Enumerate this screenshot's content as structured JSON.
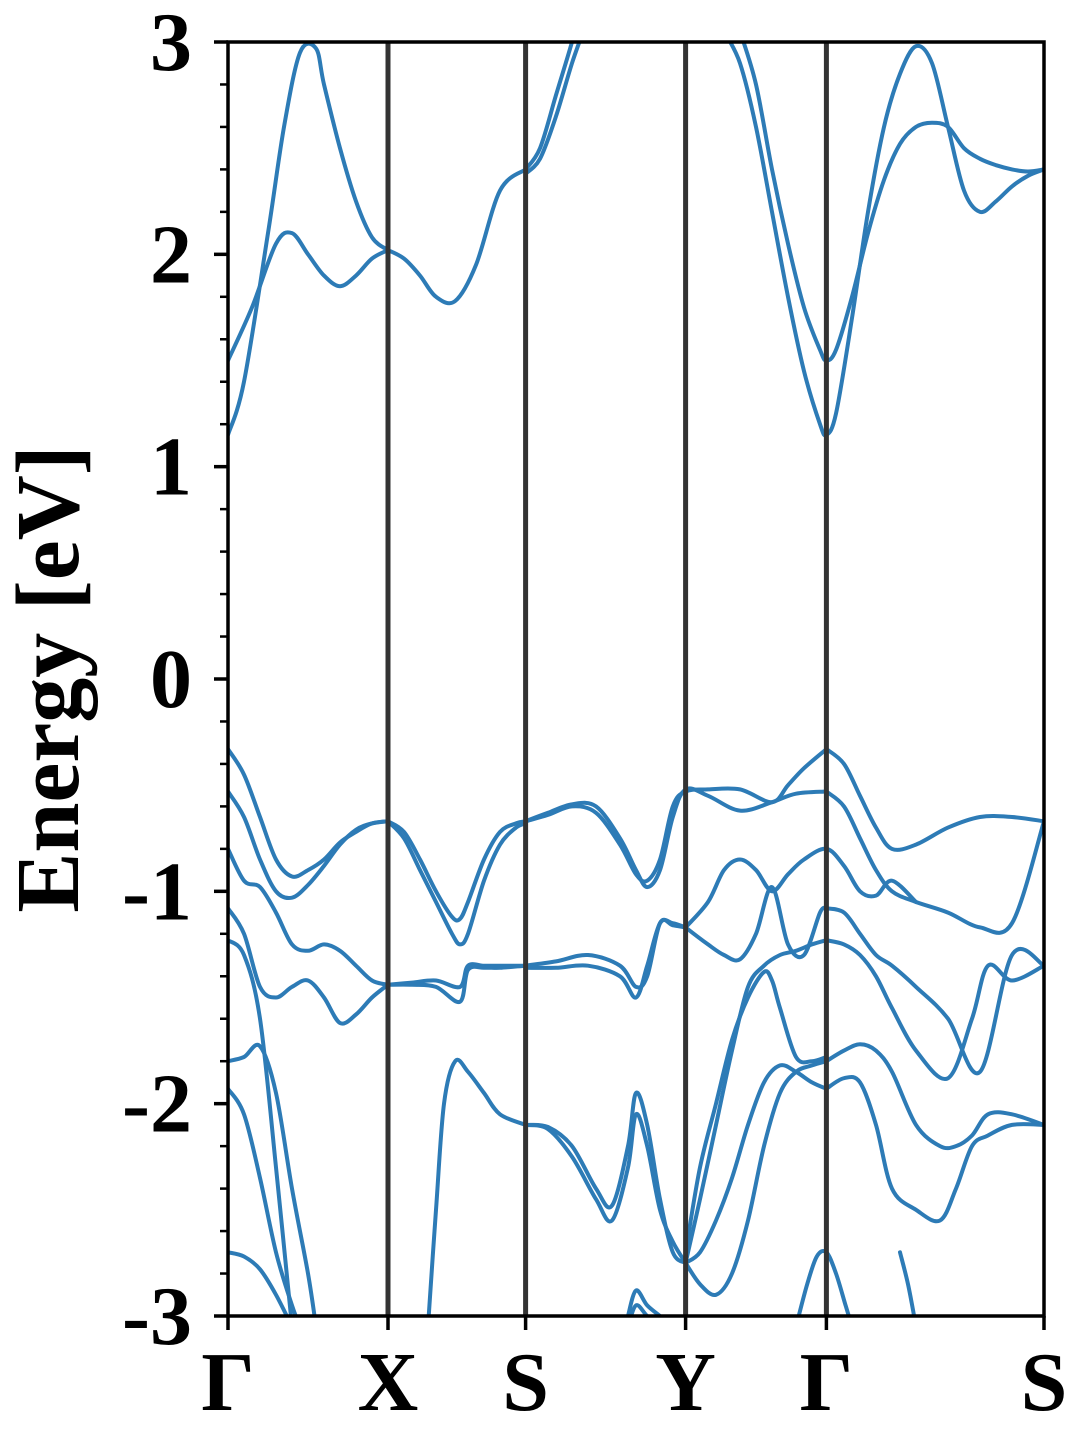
{
  "chart_data": {
    "type": "line",
    "title": "",
    "xlabel": "",
    "ylabel": "Energy [eV]",
    "ylim": [
      -3,
      3
    ],
    "yticks": [
      "-3",
      "-2",
      "-1",
      "0",
      "1",
      "2",
      "3"
    ],
    "ytick_values": [
      -3,
      -2,
      -1,
      0,
      1,
      2,
      3
    ],
    "y_minor_step": 0.2,
    "xlim": [
      0,
      5.1
    ],
    "high_symmetry_points": [
      {
        "label": "Γ",
        "x": 0
      },
      {
        "label": "X",
        "x": 1.0
      },
      {
        "label": "S",
        "x": 1.86
      },
      {
        "label": "Y",
        "x": 2.86
      },
      {
        "label": "Γ",
        "x": 3.74
      },
      {
        "label": "S",
        "x": 5.1
      }
    ],
    "grid": false,
    "legend": "none",
    "band_color": "#2d7bb6",
    "separator_color": "#333333",
    "series": [
      {
        "x": [
          0,
          0.1,
          0.25,
          0.35,
          0.45,
          0.55,
          0.6,
          0.7,
          0.8,
          0.9,
          1.0
        ],
        "values": [
          1.15,
          1.4,
          2.1,
          2.6,
          2.95,
          2.97,
          2.8,
          2.5,
          2.25,
          2.08,
          2.02
        ]
      },
      {
        "x": [
          0,
          0.15,
          0.3,
          0.4,
          0.5,
          0.6,
          0.7,
          0.8,
          0.9,
          1.0
        ],
        "values": [
          1.5,
          1.75,
          2.05,
          2.1,
          2.0,
          1.9,
          1.85,
          1.9,
          1.98,
          2.02
        ]
      },
      {
        "x": [
          1.0,
          1.1,
          1.2,
          1.3,
          1.42,
          1.55,
          1.7,
          1.86
        ],
        "values": [
          2.02,
          1.98,
          1.9,
          1.8,
          1.78,
          1.95,
          2.3,
          2.4
        ]
      },
      {
        "x": [
          1.86,
          1.95,
          2.05,
          2.15,
          2.22,
          2.3
        ],
        "values": [
          2.4,
          2.5,
          2.75,
          3.0,
          3.2,
          3.4
        ]
      },
      {
        "x": [
          1.86,
          1.95,
          2.05,
          2.15,
          2.24,
          2.3
        ],
        "values": [
          2.38,
          2.45,
          2.65,
          2.9,
          3.1,
          3.3
        ]
      },
      {
        "x": [
          3.1,
          3.2,
          3.3,
          3.4,
          3.5,
          3.6,
          3.7,
          3.74,
          3.8,
          3.9,
          4.0,
          4.1,
          4.2,
          4.3,
          4.4,
          4.5,
          4.6,
          4.7,
          4.8,
          4.9,
          5.0,
          5.1
        ],
        "values": [
          3.05,
          2.9,
          2.6,
          2.2,
          1.8,
          1.45,
          1.2,
          1.15,
          1.25,
          1.7,
          2.2,
          2.6,
          2.85,
          2.98,
          2.9,
          2.6,
          2.3,
          2.2,
          2.25,
          2.32,
          2.37,
          2.4
        ]
      },
      {
        "x": [
          3.2,
          3.3,
          3.4,
          3.5,
          3.6,
          3.7,
          3.74,
          3.8,
          3.9,
          4.0,
          4.1,
          4.2,
          4.3,
          4.4,
          4.5,
          4.6,
          4.7,
          4.8,
          4.9,
          5.0,
          5.1
        ],
        "values": [
          3.05,
          2.8,
          2.4,
          2.05,
          1.75,
          1.55,
          1.5,
          1.55,
          1.8,
          2.1,
          2.35,
          2.52,
          2.6,
          2.62,
          2.6,
          2.5,
          2.45,
          2.42,
          2.4,
          2.39,
          2.4
        ]
      },
      {
        "x": [
          0,
          0.1,
          0.2,
          0.3,
          0.4,
          0.5,
          0.6,
          0.7,
          0.8,
          0.9,
          1.0
        ],
        "values": [
          -0.33,
          -0.45,
          -0.65,
          -0.85,
          -0.93,
          -0.9,
          -0.85,
          -0.77,
          -0.72,
          -0.68,
          -0.67
        ]
      },
      {
        "x": [
          0,
          0.1,
          0.2,
          0.3,
          0.4,
          0.5,
          0.6,
          0.7,
          0.8,
          0.9,
          1.0
        ],
        "values": [
          -0.53,
          -0.65,
          -0.85,
          -1.0,
          -1.03,
          -0.97,
          -0.88,
          -0.78,
          -0.71,
          -0.68,
          -0.67
        ]
      },
      {
        "x": [
          1.0,
          1.1,
          1.2,
          1.3,
          1.4,
          1.45,
          1.5,
          1.6,
          1.7,
          1.8,
          1.86
        ],
        "values": [
          -0.67,
          -0.72,
          -0.85,
          -1.0,
          -1.12,
          -1.13,
          -1.05,
          -0.85,
          -0.72,
          -0.68,
          -0.67
        ]
      },
      {
        "x": [
          1.0,
          1.1,
          1.2,
          1.3,
          1.4,
          1.45,
          1.5,
          1.6,
          1.7,
          1.8,
          1.86
        ],
        "values": [
          -0.67,
          -0.75,
          -0.9,
          -1.05,
          -1.2,
          -1.25,
          -1.2,
          -0.95,
          -0.78,
          -0.7,
          -0.68
        ]
      },
      {
        "x": [
          1.86,
          2.0,
          2.15,
          2.3,
          2.45,
          2.55,
          2.62,
          2.7,
          2.78,
          2.86,
          3.0,
          3.2,
          3.4,
          3.5,
          3.6,
          3.74
        ],
        "values": [
          -0.67,
          -0.64,
          -0.6,
          -0.63,
          -0.78,
          -0.92,
          -0.95,
          -0.85,
          -0.6,
          -0.53,
          -0.52,
          -0.52,
          -0.58,
          -0.5,
          -0.42,
          -0.33
        ]
      },
      {
        "x": [
          1.86,
          2.0,
          2.15,
          2.3,
          2.45,
          2.55,
          2.62,
          2.7,
          2.78,
          2.86,
          3.0,
          3.2,
          3.4,
          3.55,
          3.74
        ],
        "values": [
          -0.67,
          -0.63,
          -0.59,
          -0.6,
          -0.75,
          -0.9,
          -0.98,
          -0.9,
          -0.65,
          -0.52,
          -0.55,
          -0.62,
          -0.58,
          -0.54,
          -0.53
        ]
      },
      {
        "x": [
          3.74,
          3.85,
          3.95,
          4.05,
          4.15,
          4.3,
          4.5,
          4.7,
          4.9,
          5.1
        ],
        "values": [
          -0.33,
          -0.4,
          -0.55,
          -0.7,
          -0.8,
          -0.78,
          -0.7,
          -0.65,
          -0.65,
          -0.67
        ]
      },
      {
        "x": [
          3.74,
          3.85,
          3.95,
          4.05,
          4.15,
          4.3,
          4.5,
          4.7,
          4.9,
          5.1
        ],
        "values": [
          -0.53,
          -0.6,
          -0.75,
          -0.9,
          -1.0,
          -1.05,
          -1.1,
          -1.17,
          -1.15,
          -0.67
        ]
      },
      {
        "x": [
          0,
          0.1,
          0.2,
          0.3,
          0.4,
          0.5,
          0.6,
          0.7,
          0.8,
          0.9,
          1.0
        ],
        "values": [
          -0.8,
          -0.95,
          -0.98,
          -1.1,
          -1.25,
          -1.28,
          -1.25,
          -1.28,
          -1.35,
          -1.42,
          -1.44
        ]
      },
      {
        "x": [
          0,
          0.1,
          0.2,
          0.3,
          0.4,
          0.5,
          0.6,
          0.7,
          0.8,
          0.9,
          1.0
        ],
        "values": [
          -1.08,
          -1.2,
          -1.45,
          -1.5,
          -1.45,
          -1.42,
          -1.5,
          -1.62,
          -1.58,
          -1.5,
          -1.44
        ]
      },
      {
        "x": [
          1.0,
          1.15,
          1.3,
          1.45,
          1.5,
          1.6,
          1.7,
          1.86
        ],
        "values": [
          -1.44,
          -1.43,
          -1.42,
          -1.45,
          -1.35,
          -1.35,
          -1.35,
          -1.35
        ]
      },
      {
        "x": [
          1.0,
          1.15,
          1.3,
          1.45,
          1.5,
          1.6,
          1.7,
          1.86
        ],
        "values": [
          -1.44,
          -1.44,
          -1.45,
          -1.52,
          -1.37,
          -1.36,
          -1.36,
          -1.35
        ]
      },
      {
        "x": [
          1.86,
          2.05,
          2.25,
          2.45,
          2.55,
          2.62,
          2.7,
          2.78,
          2.86
        ],
        "values": [
          -1.35,
          -1.33,
          -1.3,
          -1.35,
          -1.45,
          -1.4,
          -1.15,
          -1.16,
          -1.17
        ]
      },
      {
        "x": [
          1.86,
          2.05,
          2.25,
          2.45,
          2.55,
          2.62,
          2.7,
          2.78,
          2.86
        ],
        "values": [
          -1.36,
          -1.36,
          -1.35,
          -1.4,
          -1.5,
          -1.35,
          -1.15,
          -1.15,
          -1.17
        ]
      },
      {
        "x": [
          2.86,
          3.0,
          3.1,
          3.2,
          3.3,
          3.4,
          3.5,
          3.6,
          3.74,
          3.85,
          3.95,
          4.05,
          4.15,
          4.3
        ],
        "values": [
          -1.17,
          -1.05,
          -0.9,
          -0.85,
          -0.9,
          -1.0,
          -0.92,
          -0.85,
          -0.8,
          -0.88,
          -1.0,
          -1.02,
          -0.95,
          -1.05
        ]
      },
      {
        "x": [
          2.86,
          3.0,
          3.1,
          3.2,
          3.3,
          3.4,
          3.5,
          3.6,
          3.7,
          3.74
        ],
        "values": [
          -1.17,
          -1.25,
          -1.3,
          -1.32,
          -1.2,
          -0.98,
          -1.25,
          -1.3,
          -1.1,
          -1.08
        ]
      },
      {
        "x": [
          3.74,
          3.85,
          3.95,
          4.05,
          4.15,
          4.3,
          4.5,
          4.7,
          4.9,
          5.1
        ],
        "values": [
          -1.08,
          -1.1,
          -1.2,
          -1.3,
          -1.35,
          -1.45,
          -1.6,
          -1.85,
          -1.3,
          -1.35
        ]
      },
      {
        "x": [
          3.74,
          3.85,
          3.95,
          4.05,
          4.15,
          4.3,
          4.5,
          4.65,
          4.75,
          4.9,
          5.1
        ],
        "values": [
          -1.23,
          -1.25,
          -1.3,
          -1.4,
          -1.55,
          -1.75,
          -1.88,
          -1.6,
          -1.35,
          -1.42,
          -1.35
        ]
      },
      {
        "x": [
          0,
          0.1,
          0.2,
          0.3,
          0.4,
          0.5,
          0.55
        ],
        "values": [
          -1.8,
          -1.78,
          -1.73,
          -1.95,
          -2.4,
          -2.8,
          -3.05
        ]
      },
      {
        "x": [
          0,
          0.1,
          0.2,
          0.3,
          0.4,
          0.45
        ],
        "values": [
          -1.93,
          -2.05,
          -2.35,
          -2.7,
          -2.95,
          -3.05
        ]
      },
      {
        "x": [
          0,
          0.1,
          0.2,
          0.3,
          0.4
        ],
        "values": [
          -1.23,
          -1.3,
          -1.6,
          -2.3,
          -3.05
        ]
      },
      {
        "x": [
          0,
          0.1,
          0.2,
          0.3,
          0.4
        ],
        "values": [
          -2.7,
          -2.72,
          -2.78,
          -2.9,
          -3.05
        ]
      },
      {
        "x": [
          1.25,
          1.3,
          1.35,
          1.42,
          1.5,
          1.6,
          1.7,
          1.86
        ],
        "values": [
          -3.05,
          -2.5,
          -2.0,
          -1.8,
          -1.85,
          -1.95,
          -2.05,
          -2.1
        ]
      },
      {
        "x": [
          1.86,
          2.0,
          2.15,
          2.3,
          2.4,
          2.5,
          2.55,
          2.62,
          2.7,
          2.78,
          2.86
        ],
        "values": [
          -2.1,
          -2.12,
          -2.25,
          -2.45,
          -2.55,
          -2.3,
          -2.05,
          -2.2,
          -2.5,
          -2.65,
          -2.75
        ]
      },
      {
        "x": [
          1.86,
          2.0,
          2.15,
          2.3,
          2.4,
          2.5,
          2.55,
          2.62,
          2.7,
          2.78,
          2.86
        ],
        "values": [
          -2.1,
          -2.11,
          -2.2,
          -2.4,
          -2.48,
          -2.2,
          -1.95,
          -2.1,
          -2.45,
          -2.7,
          -2.75
        ]
      },
      {
        "x": [
          2.86,
          2.95,
          3.05,
          3.15,
          3.25,
          3.35,
          3.45,
          3.55,
          3.65,
          3.74
        ],
        "values": [
          -2.75,
          -2.45,
          -2.1,
          -1.75,
          -1.45,
          -1.35,
          -1.3,
          -1.28,
          -1.25,
          -1.23
        ]
      },
      {
        "x": [
          2.86,
          2.95,
          3.05,
          3.15,
          3.25,
          3.35,
          3.4,
          3.45,
          3.55,
          3.65,
          3.74
        ],
        "values": [
          -2.7,
          -2.3,
          -2.0,
          -1.7,
          -1.5,
          -1.38,
          -1.42,
          -1.55,
          -1.78,
          -1.8,
          -1.78
        ]
      },
      {
        "x": [
          2.86,
          2.95,
          3.05,
          3.15,
          3.25,
          3.35,
          3.45,
          3.55,
          3.65,
          3.74
        ],
        "values": [
          -2.75,
          -2.7,
          -2.55,
          -2.35,
          -2.1,
          -1.9,
          -1.82,
          -1.85,
          -1.9,
          -1.93
        ]
      },
      {
        "x": [
          2.86,
          2.95,
          3.05,
          3.15,
          3.25,
          3.35,
          3.45,
          3.55,
          3.65,
          3.74
        ],
        "values": [
          -2.75,
          -2.85,
          -2.9,
          -2.8,
          -2.55,
          -2.2,
          -1.95,
          -1.85,
          -1.82,
          -1.8
        ]
      },
      {
        "x": [
          3.74,
          3.85,
          3.95,
          4.05,
          4.15,
          4.3,
          4.45,
          4.55,
          4.65,
          4.75,
          4.9,
          5.1
        ],
        "values": [
          -1.8,
          -1.75,
          -1.72,
          -1.75,
          -1.85,
          -2.1,
          -2.2,
          -2.2,
          -2.15,
          -2.05,
          -2.05,
          -2.1
        ]
      },
      {
        "x": [
          3.74,
          3.85,
          3.95,
          4.05,
          4.15,
          4.3,
          4.45,
          4.55,
          4.65,
          4.75,
          4.9,
          5.1
        ],
        "values": [
          -1.93,
          -1.88,
          -1.9,
          -2.1,
          -2.4,
          -2.5,
          -2.55,
          -2.4,
          -2.2,
          -2.15,
          -2.1,
          -2.1
        ]
      },
      {
        "x": [
          2.5,
          2.55,
          2.62,
          2.7,
          2.78
        ],
        "values": [
          -3.0,
          -2.88,
          -2.95,
          -3.0,
          -3.05
        ]
      },
      {
        "x": [
          2.5,
          2.55,
          2.62,
          2.7
        ],
        "values": [
          -3.05,
          -2.95,
          -3.0,
          -3.05
        ]
      },
      {
        "x": [
          3.55,
          3.62,
          3.68,
          3.74,
          3.8,
          3.86,
          3.9
        ],
        "values": [
          -3.05,
          -2.85,
          -2.72,
          -2.7,
          -2.8,
          -2.95,
          -3.05
        ]
      },
      {
        "x": [
          4.2,
          4.25,
          4.3
        ],
        "values": [
          -2.7,
          -2.85,
          -3.05
        ]
      }
    ]
  }
}
